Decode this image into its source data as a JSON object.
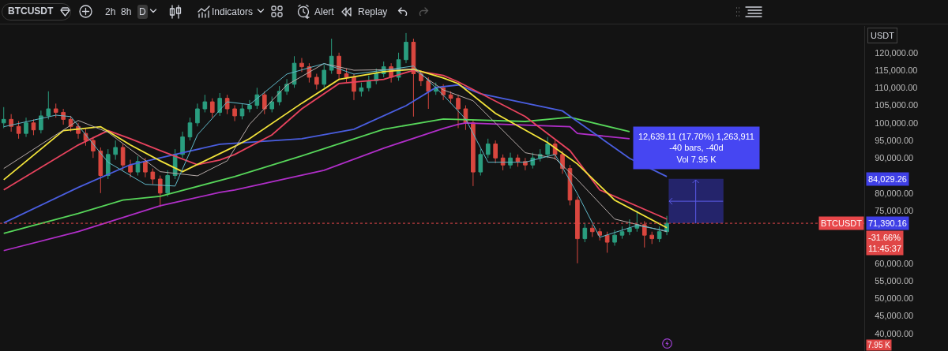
{
  "chart_data": {
    "type": "candlestick",
    "title": "BTCUSDT",
    "ylabel": "USDT",
    "categories": [
      null,
      null,
      null,
      null,
      null,
      null,
      null,
      null,
      null,
      null,
      null,
      null,
      null,
      null,
      null,
      null,
      null,
      null,
      null,
      null,
      null,
      null,
      null,
      null,
      null,
      null,
      null,
      null,
      null,
      null,
      null,
      null,
      null,
      null,
      null,
      null,
      null,
      null,
      null,
      null,
      null,
      null,
      null,
      null,
      null,
      null,
      null,
      null,
      null,
      null,
      null,
      null,
      null,
      null,
      null,
      null,
      null,
      null,
      null,
      null,
      null,
      null,
      null,
      null,
      null,
      null,
      null,
      null,
      null,
      null,
      null,
      null,
      null,
      null,
      null,
      null,
      null,
      null,
      null,
      null,
      null,
      null,
      null,
      null,
      null,
      null,
      null,
      null,
      null,
      null,
      null,
      null,
      null,
      null,
      null,
      null,
      null,
      null,
      null,
      null,
      null,
      null,
      null,
      null,
      null,
      null,
      null,
      null,
      null,
      null,
      null,
      null,
      null,
      null,
      null,
      null
    ],
    "ohlc": [
      [
        100000,
        104500,
        98500,
        101000
      ],
      [
        101000,
        102500,
        97500,
        99000
      ],
      [
        99000,
        100500,
        95500,
        97000
      ],
      [
        97000,
        101500,
        96000,
        100000
      ],
      [
        100000,
        101000,
        96500,
        98000
      ],
      [
        98000,
        103500,
        97000,
        102000
      ],
      [
        102000,
        109000,
        101000,
        104000
      ],
      [
        104000,
        105500,
        101500,
        103000
      ],
      [
        103000,
        104000,
        99500,
        101000
      ],
      [
        101000,
        102000,
        97500,
        99000
      ],
      [
        99000,
        100000,
        95500,
        97000
      ],
      [
        97000,
        98500,
        93500,
        95000
      ],
      [
        95000,
        96000,
        90000,
        92000
      ],
      [
        92000,
        93000,
        80000,
        85000
      ],
      [
        85000,
        92500,
        84000,
        91000
      ],
      [
        91000,
        95000,
        89500,
        93000
      ],
      [
        93000,
        94000,
        86500,
        88000
      ],
      [
        88000,
        89500,
        84500,
        86000
      ],
      [
        86000,
        90500,
        85000,
        89000
      ],
      [
        89000,
        90000,
        84500,
        86000
      ],
      [
        86000,
        87000,
        82500,
        84000
      ],
      [
        84000,
        85000,
        76000,
        80000
      ],
      [
        80000,
        86500,
        79000,
        85000
      ],
      [
        85000,
        92500,
        84000,
        91000
      ],
      [
        91000,
        97500,
        90000,
        96000
      ],
      [
        96000,
        101500,
        95000,
        100000
      ],
      [
        100000,
        105500,
        99000,
        104000
      ],
      [
        104000,
        108000,
        103000,
        106000
      ],
      [
        106000,
        107000,
        101500,
        103000
      ],
      [
        103000,
        108500,
        102000,
        107000
      ],
      [
        107000,
        108000,
        102500,
        104000
      ],
      [
        104000,
        105000,
        100500,
        102000
      ],
      [
        102000,
        105500,
        101000,
        104000
      ],
      [
        104000,
        106500,
        103000,
        105000
      ],
      [
        105000,
        110000,
        104000,
        108000
      ],
      [
        108000,
        109000,
        102500,
        104000
      ],
      [
        104000,
        107500,
        103000,
        106000
      ],
      [
        106000,
        110500,
        105000,
        109000
      ],
      [
        109000,
        112500,
        108000,
        111000
      ],
      [
        111000,
        119000,
        110000,
        117000
      ],
      [
        117000,
        118500,
        114500,
        116000
      ],
      [
        116000,
        117000,
        111500,
        113000
      ],
      [
        113000,
        114000,
        109500,
        111000
      ],
      [
        111000,
        116500,
        110000,
        115000
      ],
      [
        115000,
        124000,
        114000,
        119000
      ],
      [
        119000,
        120000,
        112500,
        114000
      ],
      [
        114000,
        115500,
        111500,
        113000
      ],
      [
        113000,
        114000,
        106500,
        109000
      ],
      [
        109000,
        111500,
        107500,
        110000
      ],
      [
        110000,
        113500,
        109000,
        112000
      ],
      [
        112000,
        115500,
        111000,
        114000
      ],
      [
        114000,
        117500,
        113000,
        116000
      ],
      [
        116000,
        117000,
        111500,
        113000
      ],
      [
        113000,
        120000,
        112000,
        118000
      ],
      [
        118000,
        125600,
        117000,
        123000
      ],
      [
        123000,
        124000,
        101800,
        114000
      ],
      [
        114000,
        115000,
        110500,
        112000
      ],
      [
        112000,
        113000,
        104000,
        109000
      ],
      [
        109000,
        111500,
        108000,
        110000
      ],
      [
        110000,
        111000,
        106500,
        108000
      ],
      [
        108000,
        109000,
        105500,
        107000
      ],
      [
        107000,
        108000,
        98500,
        104000
      ],
      [
        104000,
        105000,
        98000,
        100000
      ],
      [
        100000,
        101000,
        82000,
        86000
      ],
      [
        86000,
        92500,
        85000,
        91000
      ],
      [
        91000,
        95500,
        90000,
        94000
      ],
      [
        94000,
        95000,
        88500,
        90000
      ],
      [
        90000,
        91000,
        86500,
        88000
      ],
      [
        88000,
        91500,
        87000,
        90000
      ],
      [
        90000,
        91000,
        87500,
        89000
      ],
      [
        89000,
        90000,
        86500,
        88000
      ],
      [
        88000,
        91500,
        87000,
        90000
      ],
      [
        90000,
        92500,
        89000,
        91000
      ],
      [
        91000,
        96000,
        90000,
        94000
      ],
      [
        94000,
        95000,
        89500,
        91000
      ],
      [
        91000,
        92000,
        85500,
        87000
      ],
      [
        87000,
        88000,
        76500,
        78000
      ],
      [
        78000,
        79000,
        60000,
        67000
      ],
      [
        67000,
        71500,
        66000,
        70000
      ],
      [
        70000,
        71000,
        67500,
        69000
      ],
      [
        69000,
        70000,
        66500,
        68000
      ],
      [
        68000,
        69000,
        63000,
        66000
      ],
      [
        66000,
        69500,
        65000,
        68000
      ],
      [
        68000,
        70500,
        67000,
        69000
      ],
      [
        69000,
        72500,
        68000,
        70000
      ],
      [
        70000,
        75000,
        69000,
        71000
      ],
      [
        71000,
        72000,
        64500,
        68000
      ],
      [
        68000,
        69000,
        65500,
        67000
      ],
      [
        67000,
        70500,
        66000,
        69000
      ],
      [
        69000,
        73500,
        68000,
        71390.16
      ],
      null,
      null,
      null,
      null,
      null,
      null,
      null,
      null,
      null,
      null,
      null,
      null,
      null,
      null,
      null,
      null,
      null,
      null,
      null,
      null,
      null,
      null,
      null,
      null,
      null,
      null
    ],
    "series": [
      {
        "type": "line",
        "color": "#b02ec8",
        "values": [
          63600,
          null,
          null,
          null,
          null,
          null,
          null,
          null,
          null,
          null,
          69000,
          null,
          null,
          null,
          null,
          null,
          null,
          null,
          null,
          null,
          null,
          76400,
          null,
          null,
          null,
          null,
          null,
          null,
          null,
          80200,
          null,
          80900,
          null,
          null,
          null,
          null,
          null,
          null,
          null,
          null,
          null,
          null,
          null,
          86500,
          null,
          null,
          null,
          null,
          null,
          null,
          null,
          92800,
          null,
          null,
          null,
          null,
          null,
          null,
          null,
          98400,
          null,
          99600,
          100000,
          null,
          null,
          null,
          null,
          null,
          null,
          null,
          null,
          null,
          null,
          null,
          null,
          null,
          98900,
          97000,
          null,
          null,
          null,
          null,
          null,
          null,
          95500,
          null,
          null,
          null,
          null,
          null,
          null,
          null,
          null,
          null,
          null,
          null,
          null,
          null,
          null,
          null,
          null,
          null,
          null,
          null,
          null,
          null,
          null,
          null,
          null,
          null,
          null,
          null,
          null,
          null,
          null,
          null
        ]
      },
      {
        "type": "line",
        "color": "#57d65a",
        "values": [
          68500,
          null,
          null,
          null,
          null,
          null,
          null,
          null,
          null,
          null,
          74200,
          null,
          null,
          null,
          null,
          null,
          78000,
          null,
          null,
          null,
          null,
          79100,
          null,
          null,
          null,
          null,
          null,
          null,
          null,
          null,
          null,
          84700,
          null,
          null,
          null,
          null,
          null,
          null,
          null,
          null,
          90600,
          null,
          null,
          null,
          null,
          null,
          null,
          null,
          null,
          null,
          null,
          98200,
          null,
          null,
          null,
          null,
          null,
          null,
          null,
          101100,
          null,
          null,
          null,
          null,
          null,
          null,
          null,
          null,
          null,
          null,
          100400,
          null,
          null,
          null,
          null,
          null,
          101600,
          null,
          null,
          null,
          null,
          null,
          null,
          null,
          97500,
          null,
          null,
          null,
          null,
          null,
          null,
          null,
          null,
          null,
          null,
          null,
          null,
          null,
          null,
          null,
          null,
          null,
          null,
          null,
          null,
          null,
          null,
          null,
          null,
          null,
          null,
          null,
          null,
          null,
          null,
          null
        ]
      },
      {
        "type": "line",
        "color": "#4a5ee0",
        "values": [
          71500,
          null,
          null,
          null,
          null,
          null,
          null,
          null,
          null,
          null,
          81600,
          null,
          null,
          null,
          null,
          null,
          null,
          88100,
          null,
          null,
          null,
          null,
          null,
          null,
          91500,
          null,
          null,
          null,
          null,
          93900,
          null,
          null,
          null,
          null,
          null,
          null,
          null,
          null,
          null,
          null,
          95500,
          null,
          null,
          null,
          null,
          null,
          null,
          98200,
          null,
          null,
          null,
          null,
          null,
          null,
          104900,
          null,
          null,
          null,
          110100,
          null,
          null,
          110800,
          null,
          null,
          108300,
          null,
          null,
          null,
          null,
          null,
          null,
          null,
          null,
          null,
          null,
          103400,
          null,
          100400,
          null,
          null,
          null,
          null,
          null,
          null,
          89900,
          null,
          null,
          null,
          null,
          84700,
          null,
          null,
          null,
          null,
          null,
          null,
          null,
          null,
          null,
          null,
          null,
          null,
          null,
          null,
          null,
          null,
          null,
          null,
          null,
          null,
          null,
          null,
          null,
          null,
          null,
          null
        ]
      },
      {
        "type": "line",
        "color": "#e8435e",
        "values": [
          80900,
          null,
          null,
          null,
          null,
          null,
          null,
          null,
          null,
          null,
          93700,
          null,
          null,
          null,
          97800,
          null,
          null,
          95500,
          null,
          null,
          null,
          92100,
          null,
          null,
          null,
          null,
          88100,
          null,
          null,
          89400,
          null,
          91000,
          null,
          null,
          null,
          null,
          96600,
          null,
          null,
          null,
          104000,
          null,
          null,
          null,
          null,
          111200,
          null,
          null,
          null,
          null,
          null,
          112400,
          null,
          null,
          null,
          115000,
          null,
          null,
          null,
          113500,
          null,
          111700,
          null,
          null,
          null,
          null,
          null,
          null,
          null,
          null,
          101800,
          null,
          null,
          null,
          null,
          null,
          92100,
          null,
          null,
          null,
          80900,
          null,
          null,
          null,
          null,
          null,
          null,
          null,
          null,
          72600,
          null,
          null,
          null,
          null,
          null,
          null,
          null,
          null,
          null,
          null,
          null,
          null,
          null,
          null,
          null,
          null,
          null,
          null,
          null,
          null,
          null,
          null,
          null,
          null,
          null,
          null
        ]
      },
      {
        "type": "line",
        "color": "#f2e33a",
        "values": [
          83800,
          null,
          null,
          null,
          null,
          null,
          null,
          null,
          97800,
          null,
          null,
          null,
          null,
          98900,
          null,
          null,
          null,
          93700,
          null,
          null,
          null,
          89200,
          null,
          null,
          86100,
          null,
          null,
          null,
          null,
          null,
          null,
          93300,
          null,
          95500,
          null,
          null,
          null,
          null,
          null,
          null,
          105600,
          null,
          null,
          null,
          null,
          112400,
          null,
          null,
          null,
          null,
          null,
          114600,
          null,
          null,
          null,
          115300,
          null,
          null,
          null,
          112800,
          null,
          111200,
          null,
          null,
          null,
          null,
          102700,
          null,
          null,
          null,
          null,
          null,
          null,
          94400,
          null,
          null,
          null,
          88300,
          null,
          null,
          null,
          null,
          78000,
          null,
          null,
          null,
          null,
          null,
          null,
          70100,
          null,
          null,
          null,
          null,
          null,
          null,
          null,
          null,
          null,
          null,
          null,
          null,
          null,
          null,
          null,
          null,
          null,
          null,
          null,
          null,
          null,
          null,
          null,
          null,
          null,
          null
        ]
      },
      {
        "type": "line",
        "color": "#b5aaa8",
        "values": [
          87000,
          null,
          null,
          null,
          null,
          null,
          null,
          null,
          null,
          null,
          100700,
          null,
          null,
          null,
          97300,
          null,
          null,
          null,
          null,
          null,
          null,
          86100,
          null,
          null,
          null,
          null,
          84900,
          null,
          null,
          null,
          89200,
          null,
          null,
          99600,
          null,
          null,
          null,
          null,
          110800,
          null,
          null,
          null,
          null,
          116900,
          null,
          null,
          null,
          115000,
          null,
          null,
          null,
          null,
          null,
          null,
          null,
          115300,
          null,
          null,
          null,
          109400,
          null,
          null,
          null,
          106300,
          null,
          null,
          null,
          null,
          null,
          null,
          91500,
          null,
          null,
          null,
          89900,
          null,
          null,
          83800,
          null,
          null,
          null,
          null,
          72600,
          null,
          null,
          null,
          null,
          null,
          null,
          69000,
          null,
          null,
          null,
          null,
          null,
          null,
          null,
          null,
          null,
          null,
          null,
          null,
          null,
          null,
          null,
          null,
          null,
          null,
          null,
          null,
          null,
          null,
          null,
          null,
          null,
          null
        ]
      },
      {
        "type": "line",
        "color": "#5fb8c8",
        "values": [
          98900,
          null,
          null,
          null,
          null,
          null,
          null,
          102200,
          null,
          101800,
          null,
          null,
          null,
          null,
          88800,
          null,
          null,
          null,
          null,
          82500,
          null,
          null,
          null,
          82000,
          null,
          null,
          96600,
          null,
          null,
          null,
          106000,
          null,
          null,
          105200,
          null,
          null,
          null,
          null,
          113900,
          null,
          null,
          null,
          null,
          116900,
          null,
          null,
          null,
          113900,
          null,
          null,
          null,
          115000,
          null,
          null,
          null,
          116200,
          null,
          null,
          null,
          107900,
          null,
          null,
          101100,
          null,
          null,
          88800,
          null,
          null,
          null,
          null,
          88800,
          null,
          null,
          null,
          91000,
          null,
          null,
          79800,
          null,
          null,
          67400,
          null,
          null,
          null,
          null,
          70800,
          null,
          null,
          null,
          69200,
          null,
          null,
          null,
          null,
          null,
          null,
          null,
          null,
          null,
          null,
          null,
          null,
          null,
          null,
          null,
          null,
          null,
          null,
          null,
          null,
          null,
          null,
          null,
          null,
          null,
          null
        ]
      }
    ],
    "ylim": [
      35000,
      127600
    ],
    "yticks": [
      {
        "value": 40000,
        "label": "40,000.00"
      },
      {
        "value": 45000,
        "label": "45,000.00"
      },
      {
        "value": 50000,
        "label": "50,000.00"
      },
      {
        "value": 55000,
        "label": "55,000.00"
      },
      {
        "value": 60000,
        "label": "60,000.00"
      },
      {
        "value": 75000,
        "label": "75,000.00"
      },
      {
        "value": 80000,
        "label": "80,000.00"
      },
      {
        "value": 90000,
        "label": "90,000.00"
      },
      {
        "value": 95000,
        "label": "95,000.00"
      },
      {
        "value": 100000,
        "label": "100,000.00"
      },
      {
        "value": 105000,
        "label": "105,000.00"
      },
      {
        "value": 110000,
        "label": "110,000.00"
      },
      {
        "value": 115000,
        "label": "115,000.00"
      },
      {
        "value": 120000,
        "label": "120,000.00"
      }
    ],
    "tick_labels": "y",
    "line_style": "solid",
    "ref_lines": [
      {
        "axis": "y",
        "value": 71390.16,
        "label": "BTCUSDT",
        "color": "#e8474a",
        "line_style": "dotted"
      }
    ],
    "bands": [
      {
        "axis": "y",
        "from": 71390.16,
        "to": 84029.26,
        "color": "#2b2b8a"
      }
    ],
    "annotations": [
      "2h",
      "8h",
      "D",
      "Indicators",
      "Alert",
      "Replay",
      "12,639.11 (17.70%) 1,263,911",
      "-40 bars, -40d",
      "Vol 7.95 K",
      "71,390.16",
      "-31.66%",
      "11:45:37",
      "7.95 K",
      "84,029.26"
    ]
  }
}
